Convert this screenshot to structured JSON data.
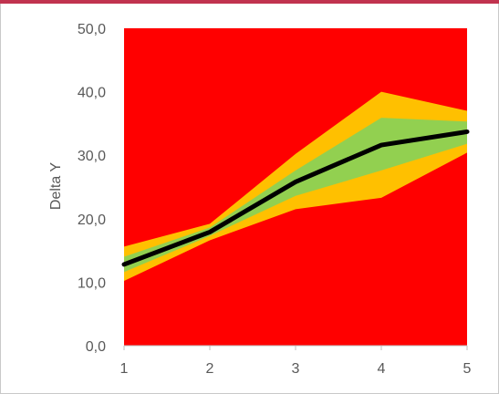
{
  "top_bar_color": "#c1334f",
  "chart_data": {
    "type": "area",
    "title": "",
    "xlabel": "",
    "ylabel": "Delta Y",
    "x": [
      1,
      2,
      3,
      4,
      5
    ],
    "x_tick_labels": [
      "1",
      "2",
      "3",
      "4",
      "5"
    ],
    "y_tick_labels": [
      "0,0",
      "10,0",
      "20,0",
      "30,0",
      "40,0",
      "50,0"
    ],
    "y_ticks": [
      0,
      10,
      20,
      30,
      40,
      50
    ],
    "ylim": [
      0,
      50
    ],
    "xlim": [
      1,
      5
    ],
    "grid": false,
    "legend": "none",
    "background_band": {
      "color": "#ff0000",
      "from": 0,
      "to": 50
    },
    "bands": [
      {
        "color": "#ffc000",
        "lower": [
          10.2,
          16.6,
          21.5,
          23.3,
          30.4
        ],
        "upper": [
          15.6,
          19.2,
          30.2,
          40.0,
          37.0
        ]
      },
      {
        "color": "#92d050",
        "lower": [
          11.6,
          17.3,
          23.6,
          27.6,
          31.8
        ],
        "upper": [
          14.0,
          18.6,
          27.6,
          35.9,
          35.3
        ]
      }
    ],
    "series": [
      {
        "color": "#000000",
        "values": [
          12.8,
          17.9,
          25.8,
          31.6,
          33.7
        ]
      }
    ]
  }
}
